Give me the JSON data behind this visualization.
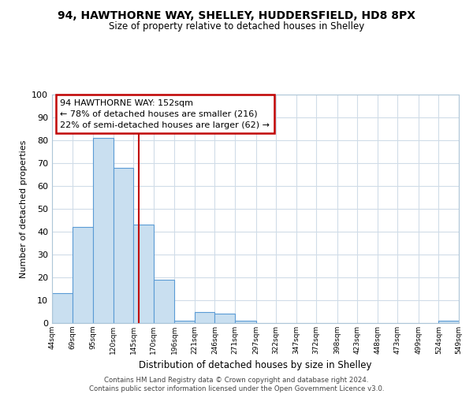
{
  "title": "94, HAWTHORNE WAY, SHELLEY, HUDDERSFIELD, HD8 8PX",
  "subtitle": "Size of property relative to detached houses in Shelley",
  "xlabel": "Distribution of detached houses by size in Shelley",
  "ylabel": "Number of detached properties",
  "bar_color": "#c9dff0",
  "bar_edge_color": "#5b9bd5",
  "bin_edges": [
    44,
    69,
    95,
    120,
    145,
    170,
    196,
    221,
    246,
    271,
    297,
    322,
    347,
    372,
    398,
    423,
    448,
    473,
    499,
    524,
    549
  ],
  "bin_labels": [
    "44sqm",
    "69sqm",
    "95sqm",
    "120sqm",
    "145sqm",
    "170sqm",
    "196sqm",
    "221sqm",
    "246sqm",
    "271sqm",
    "297sqm",
    "322sqm",
    "347sqm",
    "372sqm",
    "398sqm",
    "423sqm",
    "448sqm",
    "473sqm",
    "499sqm",
    "524sqm",
    "549sqm"
  ],
  "counts": [
    13,
    42,
    81,
    68,
    43,
    19,
    1,
    5,
    4,
    1,
    0,
    0,
    0,
    0,
    0,
    0,
    0,
    0,
    0,
    1
  ],
  "vline_x": 152,
  "vline_color": "#c00000",
  "annotation_title": "94 HAWTHORNE WAY: 152sqm",
  "annotation_line1": "← 78% of detached houses are smaller (216)",
  "annotation_line2": "22% of semi-detached houses are larger (62) →",
  "ylim": [
    0,
    100
  ],
  "yticks": [
    0,
    10,
    20,
    30,
    40,
    50,
    60,
    70,
    80,
    90,
    100
  ],
  "footer_line1": "Contains HM Land Registry data © Crown copyright and database right 2024.",
  "footer_line2": "Contains public sector information licensed under the Open Government Licence v3.0.",
  "background_color": "#ffffff",
  "grid_color": "#d0dce8"
}
